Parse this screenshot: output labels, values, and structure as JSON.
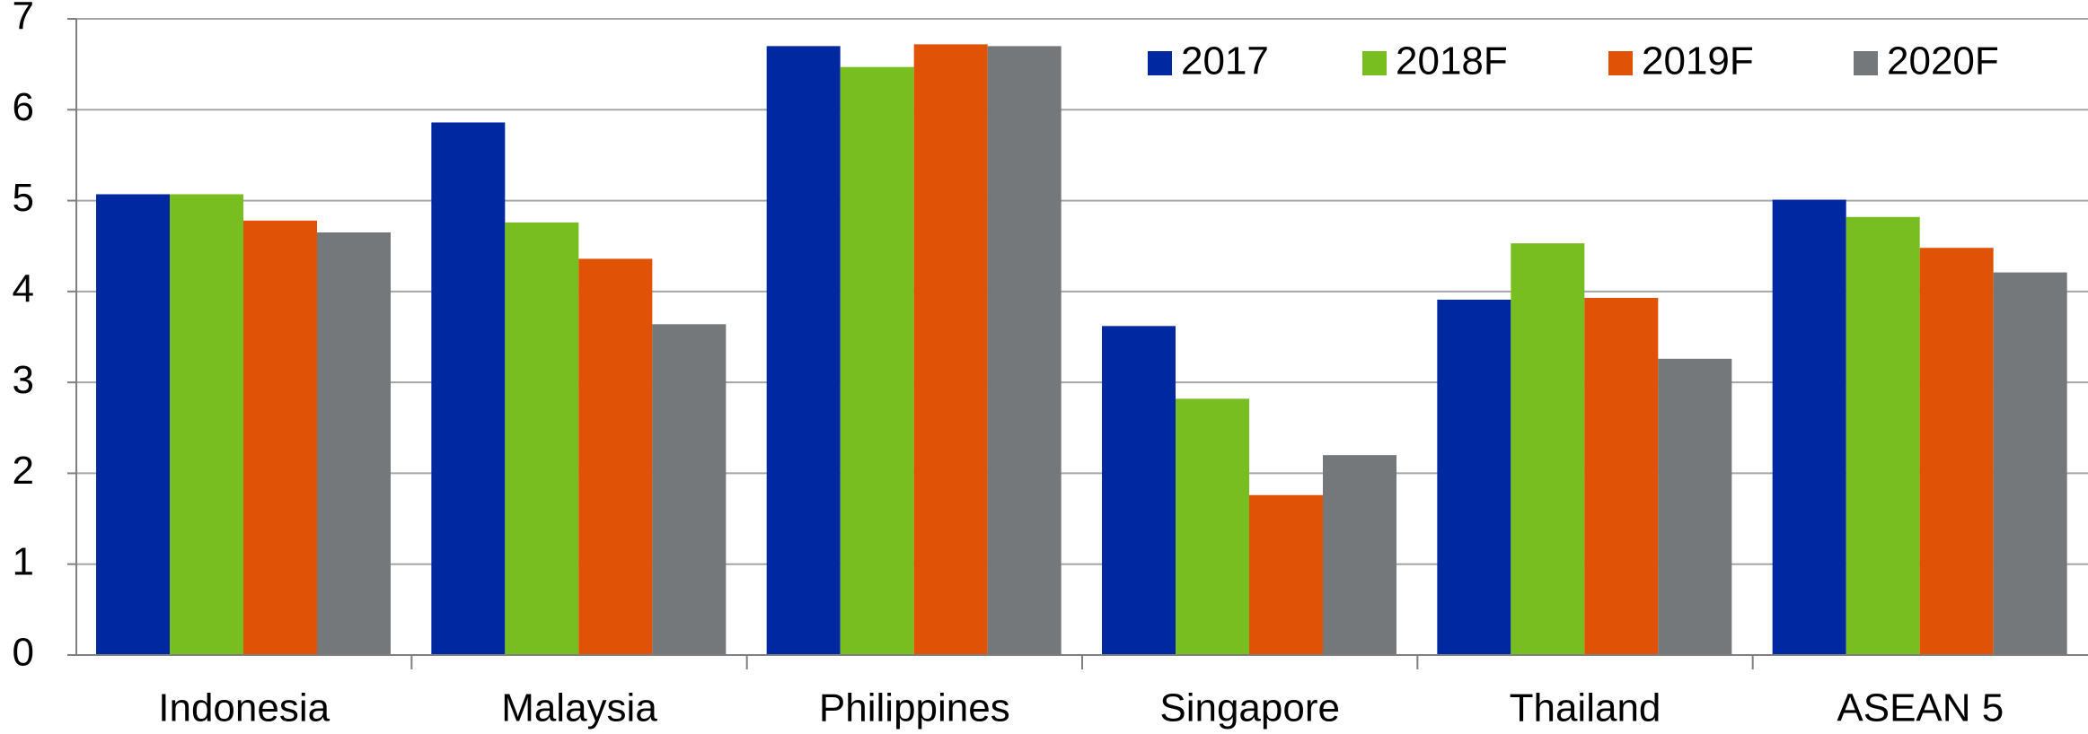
{
  "chart_data": {
    "type": "bar",
    "categories": [
      "Indonesia",
      "Malaysia",
      "Philippines",
      "Singapore",
      "Thailand",
      "ASEAN 5"
    ],
    "series": [
      {
        "name": "2017",
        "color": "#0028a0",
        "values": [
          5.07,
          5.86,
          6.7,
          3.62,
          3.91,
          5.01
        ]
      },
      {
        "name": "2018F",
        "color": "#78be20",
        "values": [
          5.07,
          4.76,
          6.47,
          2.82,
          4.53,
          4.82
        ]
      },
      {
        "name": "2019F",
        "color": "#e05206",
        "values": [
          4.78,
          4.36,
          6.72,
          1.76,
          3.93,
          4.48
        ]
      },
      {
        "name": "2020F",
        "color": "#75787b",
        "values": [
          4.65,
          3.64,
          6.7,
          2.2,
          3.26,
          4.21
        ]
      }
    ],
    "ylim": [
      0,
      7
    ],
    "yticks": [
      0,
      1,
      2,
      3,
      4,
      5,
      6,
      7
    ],
    "grid": true,
    "legend": "top-right"
  }
}
